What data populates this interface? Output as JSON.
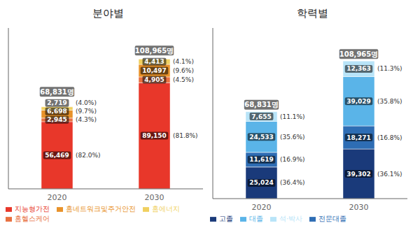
{
  "chart_data": [
    {
      "type": "bar",
      "stacked": true,
      "title": "분야별",
      "categories": [
        "2020",
        "2030"
      ],
      "series": [
        {
          "name": "지능형가전",
          "color": "#e8372a",
          "values": [
            56469,
            89150
          ],
          "value_labels": [
            "56,469",
            "89,150"
          ],
          "share_labels": [
            "(82.0%)",
            "(81.8%)"
          ]
        },
        {
          "name": "홈헬스케어",
          "color": "#e87040",
          "values": [
            2945,
            4905
          ],
          "value_labels": [
            "2,945",
            "4,905"
          ],
          "share_labels": [
            "(4.3%)",
            "(4.5%)"
          ]
        },
        {
          "name": "홈네트워크및주거안전",
          "color": "#e8922a",
          "values": [
            6698,
            10497
          ],
          "value_labels": [
            "6,698",
            "10,497"
          ],
          "share_labels": [
            "(9.7%)",
            "(9.6%)"
          ]
        },
        {
          "name": "홈에너지",
          "color": "#f0d060",
          "values": [
            2719,
            4413
          ],
          "value_labels": [
            "2,719",
            "4,413"
          ],
          "share_labels": [
            "(4.0%)",
            "(4.1%)"
          ]
        }
      ],
      "totals": [
        68831,
        108965
      ],
      "total_labels": [
        "68,831명",
        "108,965명"
      ],
      "ylim": [
        0,
        135116.6
      ],
      "yticks": [],
      "tick_labels": "x",
      "grid": false,
      "legend": "lower left",
      "data_labels": true
    },
    {
      "type": "bar",
      "stacked": true,
      "title": "학력별",
      "categories": [
        "2020",
        "2030"
      ],
      "series": [
        {
          "name": "고졸",
          "color": "#1a3a7a",
          "values": [
            25024,
            39302
          ],
          "value_labels": [
            "25,024",
            "39,302"
          ],
          "share_labels": [
            "(36.4%)",
            "(36.1%)"
          ]
        },
        {
          "name": "전문대졸",
          "color": "#2e6db4",
          "values": [
            11619,
            18271
          ],
          "value_labels": [
            "11,619",
            "18,271"
          ],
          "share_labels": [
            "(16.9%)",
            "(16.8%)"
          ]
        },
        {
          "name": "대졸",
          "color": "#5ab4e8",
          "values": [
            24533,
            39029
          ],
          "value_labels": [
            "24,533",
            "39,029"
          ],
          "share_labels": [
            "(35.6%)",
            "(35.8%)"
          ]
        },
        {
          "name": "석·박사",
          "color": "#b8e4f8",
          "values": [
            7655,
            12363
          ],
          "value_labels": [
            "7,655",
            "12,363"
          ],
          "share_labels": [
            "(11.1%)",
            "(11.3%)"
          ]
        }
      ],
      "totals": [
        68831,
        108965
      ],
      "total_labels": [
        "68,831명",
        "108,965명"
      ],
      "ylim": [
        0,
        135116.6
      ],
      "yticks": [],
      "tick_labels": "x",
      "grid": false,
      "legend": "lower left",
      "data_labels": true
    }
  ]
}
